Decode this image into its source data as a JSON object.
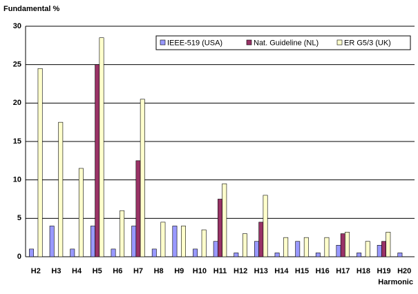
{
  "chart_data": {
    "type": "bar",
    "y_label": "Fundamental %",
    "x_label": "Harmonic",
    "categories": [
      "H2",
      "H3",
      "H4",
      "H5",
      "H6",
      "H7",
      "H8",
      "H9",
      "H10",
      "H11",
      "H12",
      "H13",
      "H14",
      "H15",
      "H16",
      "H17",
      "H18",
      "H19",
      "H20"
    ],
    "series": [
      {
        "name": "IEEE-519 (USA)",
        "color": "#9999ff",
        "values": [
          1,
          4,
          1,
          4,
          1,
          4,
          1,
          4,
          1,
          2,
          0.5,
          2,
          0.5,
          2,
          0.5,
          1.5,
          0.5,
          1.5,
          0.5
        ]
      },
      {
        "name": "Nat. Guideline (NL)",
        "color": "#993366",
        "values": [
          0,
          0,
          0,
          25,
          0,
          12.5,
          0,
          0,
          0,
          7.5,
          0,
          4.5,
          0,
          0,
          0,
          3,
          0,
          2,
          0
        ]
      },
      {
        "name": "ER G5/3 (UK)",
        "color": "#ffffcc",
        "values": [
          24.5,
          17.5,
          11.5,
          28.5,
          6,
          20.5,
          4.5,
          4,
          3.5,
          9.5,
          3,
          8,
          2.5,
          2.5,
          2.5,
          3.2,
          2,
          3.2,
          0
        ]
      }
    ],
    "ylim": [
      0,
      30
    ],
    "yticks": [
      0,
      5,
      10,
      15,
      20,
      25,
      30
    ],
    "grid": true,
    "legend": "top-right"
  }
}
